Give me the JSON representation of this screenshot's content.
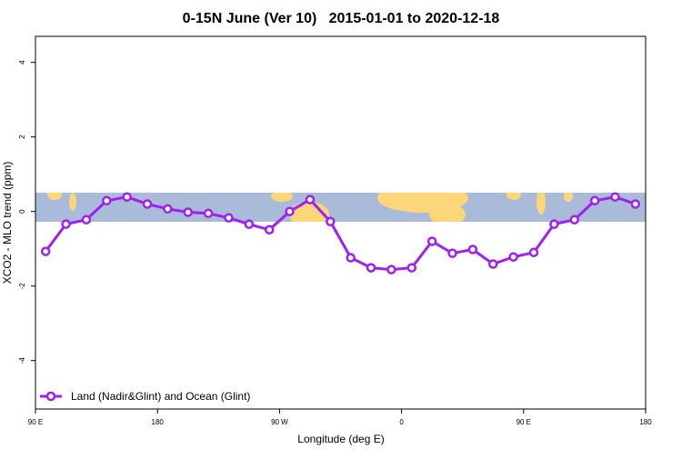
{
  "chart_data": {
    "type": "line",
    "title": "0-15N June (Ver 10)   2015-01-01 to 2020-12-18",
    "x_label": "Longitude (deg E)",
    "y_label": "XCO2 - MLO trend (ppm)",
    "x": [
      97.5,
      112.5,
      127.5,
      142.5,
      157.5,
      172.5,
      187.5,
      202.5,
      217.5,
      232.5,
      247.5,
      262.5,
      277.5,
      292.5,
      307.5,
      322.5,
      337.5,
      352.5,
      367.5,
      382.5,
      397.5,
      412.5,
      427.5,
      442.5,
      457.5,
      472.5,
      487.5,
      502.5,
      517.5,
      532.5
    ],
    "series": [
      {
        "name": "Land (Nadir&Glint) and Ocean (Glint)",
        "color": "#a020f0",
        "values": [
          -1.07,
          -0.34,
          -0.22,
          0.29,
          0.39,
          0.2,
          0.07,
          -0.02,
          -0.05,
          -0.17,
          -0.34,
          -0.49,
          0.0,
          0.32,
          -0.27,
          -1.24,
          -1.51,
          -1.56,
          -1.51,
          -0.8,
          -1.12,
          -1.02,
          -1.41,
          -1.22,
          -1.1,
          -0.34,
          -0.22,
          0.29,
          0.39,
          0.2
        ]
      }
    ],
    "xlim": [
      90,
      540
    ],
    "xticks": [
      {
        "value": 90,
        "label": "90 E"
      },
      {
        "value": 180,
        "label": "180"
      },
      {
        "value": 270,
        "label": "90 W"
      },
      {
        "value": 360,
        "label": "0"
      },
      {
        "value": 450,
        "label": "90 E"
      },
      {
        "value": 540,
        "label": "180"
      }
    ],
    "ylim": [
      -5.3,
      4.7
    ],
    "yticks": [
      -4,
      -2,
      0,
      2,
      4
    ],
    "legend_position": "bottom-left"
  }
}
